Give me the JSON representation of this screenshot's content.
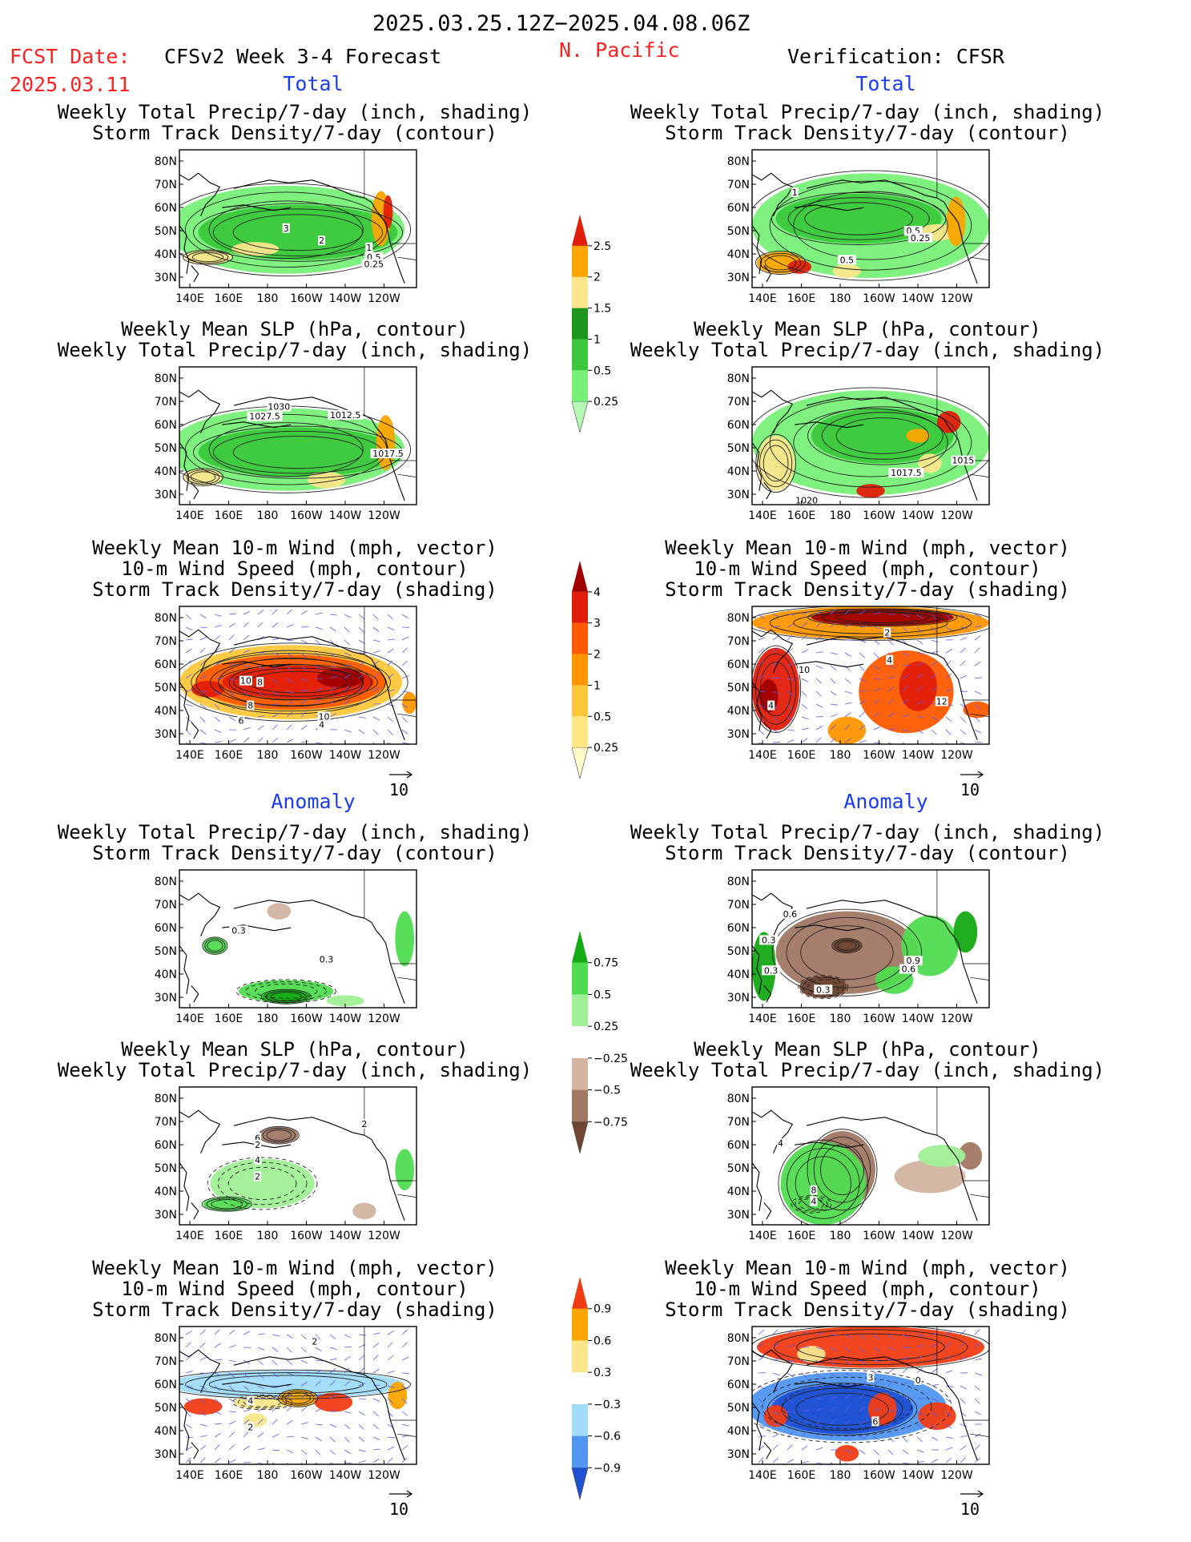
{
  "header": {
    "period": "2025.03.25.12Z−2025.04.08.06Z",
    "fcst_label": "FCST Date:",
    "fcst_date": "2025.03.11",
    "forecast_title": "CFSv2 Week 3-4 Forecast",
    "region": "N. Pacific",
    "verification": "Verification: CFSR"
  },
  "sections": {
    "total": "Total",
    "anomaly": "Anomaly"
  },
  "panel_titles": {
    "precip_storm": [
      "Weekly Total Precip/7-day (inch, shading)",
      "Storm Track Density/7-day (contour)"
    ],
    "slp_precip": [
      "Weekly Mean SLP (hPa, contour)",
      "Weekly Total Precip/7-day (inch, shading)"
    ],
    "wind_storm": [
      "Weekly Mean 10-m Wind (mph, vector)",
      "10-m Wind Speed (mph, contour)",
      "Storm Track Density/7-day (shading)"
    ]
  },
  "wind_reference": "10",
  "chart_data": [
    {
      "type": "heatmap",
      "name": "colorbar-total-precip",
      "levels": [
        "0.25",
        "0.5",
        "1",
        "1.5",
        "2",
        "2.5"
      ],
      "colors": [
        "#b4fab4",
        "#78f078",
        "#3cc83c",
        "#1e961e",
        "#fae68c",
        "#faa500",
        "#e11e0a"
      ]
    },
    {
      "type": "heatmap",
      "name": "colorbar-total-storm",
      "levels": [
        "0.25",
        "0.5",
        "1",
        "2",
        "3",
        "4"
      ],
      "colors": [
        "#fffac8",
        "#ffe682",
        "#ffc83c",
        "#ff9600",
        "#ff5a00",
        "#e11e0a",
        "#a00000"
      ]
    },
    {
      "type": "heatmap",
      "name": "colorbar-anomaly-precip",
      "levels": [
        "−0.75",
        "−0.5",
        "−0.25",
        "0.25",
        "0.5",
        "0.75"
      ],
      "colors": [
        "#6e4632",
        "#a07864",
        "#d2b4a0",
        "#ffffff",
        "#a0f096",
        "#50dc50",
        "#14aa14"
      ]
    },
    {
      "type": "heatmap",
      "name": "colorbar-anomaly-storm",
      "levels": [
        "−0.9",
        "−0.6",
        "−0.3",
        "0.3",
        "0.6",
        "0.9"
      ],
      "colors": [
        "#1e50d2",
        "#5096f0",
        "#a0dcfa",
        "#ffffff",
        "#fae68c",
        "#faa500",
        "#f03c14"
      ]
    }
  ],
  "maps": {
    "lat_labels": [
      "80N",
      "70N",
      "60N",
      "50N",
      "40N",
      "30N"
    ],
    "lon_labels": [
      "140E",
      "160E",
      "180",
      "160W",
      "140W",
      "120W"
    ],
    "contour_labels": {
      "p1": [
        "3",
        "2",
        "1",
        "0.5",
        "0.25"
      ],
      "p2": [
        "1",
        "0.5",
        "0.25",
        "0.5"
      ],
      "p3": [
        "1030",
        "1027.5",
        "1012.5",
        "1017.5"
      ],
      "p4": [
        "1017.5",
        "1015",
        "1020"
      ],
      "p5": [
        "10",
        "8",
        "8",
        "6",
        "10",
        "4"
      ],
      "p6": [
        "2",
        "4",
        "10",
        "4",
        "12"
      ],
      "p7": [
        "0.3",
        "0.3"
      ],
      "p8": [
        "0.6",
        "0.3",
        "0.3",
        "0.3",
        "0.9",
        "0.6"
      ],
      "p9": [
        "2",
        "6",
        "2",
        "4",
        "2"
      ],
      "p10": [
        "4",
        "8",
        "4"
      ],
      "p11": [
        "2",
        "4",
        "2"
      ],
      "p12": [
        "3",
        "0",
        "6",
        "3"
      ]
    }
  }
}
